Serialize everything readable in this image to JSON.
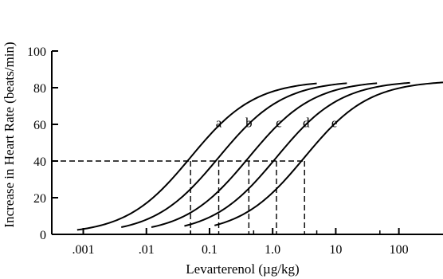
{
  "chart_data": {
    "type": "line",
    "title": "",
    "xlabel": "Levarterenol (µg/kg)",
    "ylabel": "Increase in Heart Rate (beats/min)",
    "xscale": "log",
    "xlim": [
      0.0004,
      500
    ],
    "ylim": [
      0,
      100
    ],
    "xticks": [
      {
        "value": 0.001,
        "label": ".001"
      },
      {
        "value": 0.01,
        "label": ".01"
      },
      {
        "value": 0.1,
        "label": "0.1"
      },
      {
        "value": 1,
        "label": "1.0"
      },
      {
        "value": 10,
        "label": "10"
      },
      {
        "value": 100,
        "label": "100"
      }
    ],
    "xminor": [
      0.05,
      0.5,
      5,
      50
    ],
    "yticks": [
      {
        "value": 0,
        "label": "0"
      },
      {
        "value": 20,
        "label": "20"
      },
      {
        "value": 40,
        "label": "40"
      },
      {
        "value": 60,
        "label": "60"
      },
      {
        "value": 80,
        "label": "80"
      },
      {
        "value": 100,
        "label": "100"
      }
    ],
    "grid": false,
    "reference_line": {
      "y": 40,
      "style": "dashed"
    },
    "series": [
      {
        "name": "a",
        "ec50": 0.05,
        "x_range": [
          0.0008,
          5
        ],
        "label_at": {
          "x": 0.14,
          "y": 61
        }
      },
      {
        "name": "b",
        "ec50": 0.14,
        "x_range": [
          0.004,
          15
        ],
        "label_at": {
          "x": 0.42,
          "y": 61
        }
      },
      {
        "name": "c",
        "ec50": 0.42,
        "x_range": [
          0.012,
          45
        ],
        "label_at": {
          "x": 1.25,
          "y": 61
        }
      },
      {
        "name": "d",
        "ec50": 1.15,
        "x_range": [
          0.04,
          150
        ],
        "label_at": {
          "x": 3.4,
          "y": 61
        }
      },
      {
        "name": "e",
        "ec50": 3.2,
        "x_range": [
          0.12,
          500
        ],
        "label_at": {
          "x": 9.5,
          "y": 61
        }
      }
    ],
    "curve_model": {
      "top": 84,
      "bottom": 0,
      "hill": 0.85
    }
  }
}
